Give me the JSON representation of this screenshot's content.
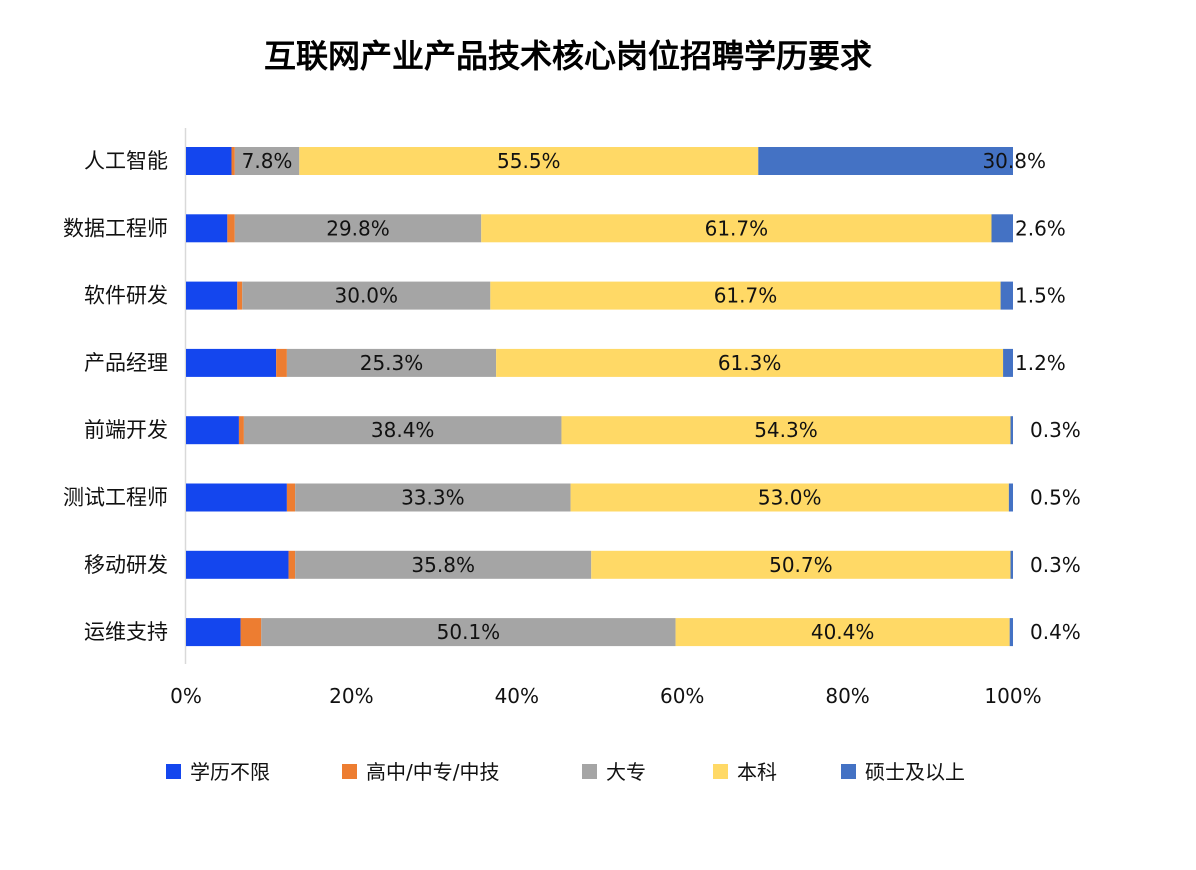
{
  "chart_data": {
    "type": "bar",
    "orientation": "horizontal",
    "stacked": "percent",
    "title": "互联网产业产品技术核心岗位招聘学历要求",
    "xlabel": "",
    "ylabel": "",
    "xlim": [
      0,
      100
    ],
    "xticks": [
      "0%",
      "20%",
      "40%",
      "60%",
      "80%",
      "100%"
    ],
    "grid": false,
    "legend_position": "bottom",
    "categories": [
      "人工智能",
      "数据工程师",
      "软件研发",
      "产品经理",
      "前端开发",
      "测试工程师",
      "移动研发",
      "运维支持"
    ],
    "series": [
      {
        "name": "学历不限",
        "color": "#1446ee",
        "values": [
          5.5,
          5.0,
          6.2,
          10.9,
          6.4,
          12.2,
          12.4,
          6.6
        ],
        "labels": [
          "",
          "",
          "",
          "",
          "",
          "",
          "",
          ""
        ]
      },
      {
        "name": "高中/中专/中技",
        "color": "#ed7d31",
        "values": [
          0.4,
          0.9,
          0.6,
          1.3,
          0.6,
          1.0,
          0.8,
          2.5
        ],
        "labels": [
          "",
          "",
          "",
          "",
          "",
          "",
          "",
          ""
        ]
      },
      {
        "name": "大专",
        "color": "#a5a5a5",
        "values": [
          7.8,
          29.8,
          30.0,
          25.3,
          38.4,
          33.3,
          35.8,
          50.1
        ],
        "labels": [
          "7.8%",
          "29.8%",
          "30.0%",
          "25.3%",
          "38.4%",
          "33.3%",
          "35.8%",
          "50.1%"
        ]
      },
      {
        "name": "本科",
        "color": "#ffd966",
        "values": [
          55.5,
          61.7,
          61.7,
          61.3,
          54.3,
          53.0,
          50.7,
          40.4
        ],
        "labels": [
          "55.5%",
          "61.7%",
          "61.7%",
          "61.3%",
          "54.3%",
          "53.0%",
          "50.7%",
          "40.4%"
        ]
      },
      {
        "name": "硕士及以上",
        "color": "#4472c4",
        "values": [
          30.8,
          2.6,
          1.5,
          1.2,
          0.3,
          0.5,
          0.3,
          0.4
        ],
        "labels": [
          "30.8%",
          "2.6%",
          "1.5%",
          "1.2%",
          "0.3%",
          "0.5%",
          "0.3%",
          "0.4%"
        ]
      }
    ]
  }
}
